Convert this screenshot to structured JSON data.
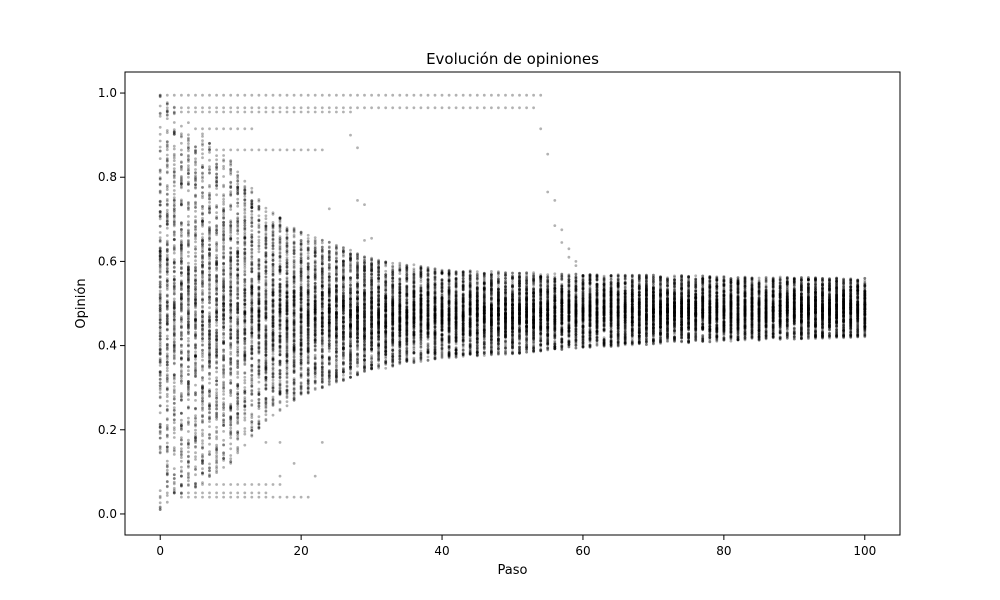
{
  "chart_data": {
    "type": "scatter",
    "title": "Evolución de opiniones",
    "xlabel": "Paso",
    "ylabel": "Opinión",
    "xlim": [
      -5,
      105
    ],
    "ylim": [
      -0.05,
      1.05
    ],
    "x_ticks": [
      0,
      20,
      40,
      60,
      80,
      100
    ],
    "y_ticks": [
      0.0,
      0.2,
      0.4,
      0.6,
      0.8,
      1.0
    ],
    "x_tick_labels": [
      "0",
      "20",
      "40",
      "60",
      "80",
      "100"
    ],
    "y_tick_labels": [
      "0.0",
      "0.2",
      "0.4",
      "0.6",
      "0.8",
      "1.0"
    ],
    "grid": false,
    "legend": "none",
    "point_color": "#000000",
    "point_opacity": 0.3,
    "steps": [
      0,
      100
    ],
    "agents_per_step": 200,
    "envelope": [
      {
        "step": 0,
        "min": 0.0,
        "max": 1.0
      },
      {
        "step": 1,
        "min": 0.02,
        "max": 0.99
      },
      {
        "step": 2,
        "min": 0.04,
        "max": 0.97
      },
      {
        "step": 5,
        "min": 0.06,
        "max": 0.92
      },
      {
        "step": 10,
        "min": 0.12,
        "max": 0.84
      },
      {
        "step": 15,
        "min": 0.22,
        "max": 0.73
      },
      {
        "step": 20,
        "min": 0.28,
        "max": 0.67
      },
      {
        "step": 30,
        "min": 0.34,
        "max": 0.61
      },
      {
        "step": 40,
        "min": 0.37,
        "max": 0.58
      },
      {
        "step": 50,
        "min": 0.38,
        "max": 0.575
      },
      {
        "step": 60,
        "min": 0.395,
        "max": 0.57
      },
      {
        "step": 80,
        "min": 0.41,
        "max": 0.565
      },
      {
        "step": 100,
        "min": 0.42,
        "max": 0.56
      }
    ],
    "outlier_tracks": [
      {
        "from": 0,
        "to": 54,
        "value": 0.995
      },
      {
        "from": 1,
        "to": 53,
        "value": 0.965
      },
      {
        "from": 1,
        "to": 27,
        "value": 0.955
      },
      {
        "from": 5,
        "to": 13,
        "value": 0.915
      },
      {
        "from": 7,
        "to": 23,
        "value": 0.865
      },
      {
        "from": 3,
        "to": 17,
        "value": 0.07
      },
      {
        "from": 2,
        "to": 15,
        "value": 0.05
      },
      {
        "from": 3,
        "to": 21,
        "value": 0.04
      }
    ],
    "outlier_points": [
      {
        "x": 27,
        "y": 0.9
      },
      {
        "x": 28,
        "y": 0.87
      },
      {
        "x": 24,
        "y": 0.725
      },
      {
        "x": 28,
        "y": 0.745
      },
      {
        "x": 29,
        "y": 0.735
      },
      {
        "x": 29,
        "y": 0.65
      },
      {
        "x": 30,
        "y": 0.655
      },
      {
        "x": 54,
        "y": 0.915
      },
      {
        "x": 55,
        "y": 0.855
      },
      {
        "x": 55,
        "y": 0.765
      },
      {
        "x": 56,
        "y": 0.745
      },
      {
        "x": 56,
        "y": 0.685
      },
      {
        "x": 57,
        "y": 0.675
      },
      {
        "x": 57,
        "y": 0.645
      },
      {
        "x": 58,
        "y": 0.63
      },
      {
        "x": 58,
        "y": 0.61
      },
      {
        "x": 59,
        "y": 0.6
      },
      {
        "x": 59,
        "y": 0.59
      },
      {
        "x": 23,
        "y": 0.17
      },
      {
        "x": 19,
        "y": 0.12
      },
      {
        "x": 22,
        "y": 0.09
      },
      {
        "x": 17,
        "y": 0.09
      },
      {
        "x": 17,
        "y": 0.17
      },
      {
        "x": 15,
        "y": 0.17
      }
    ]
  }
}
